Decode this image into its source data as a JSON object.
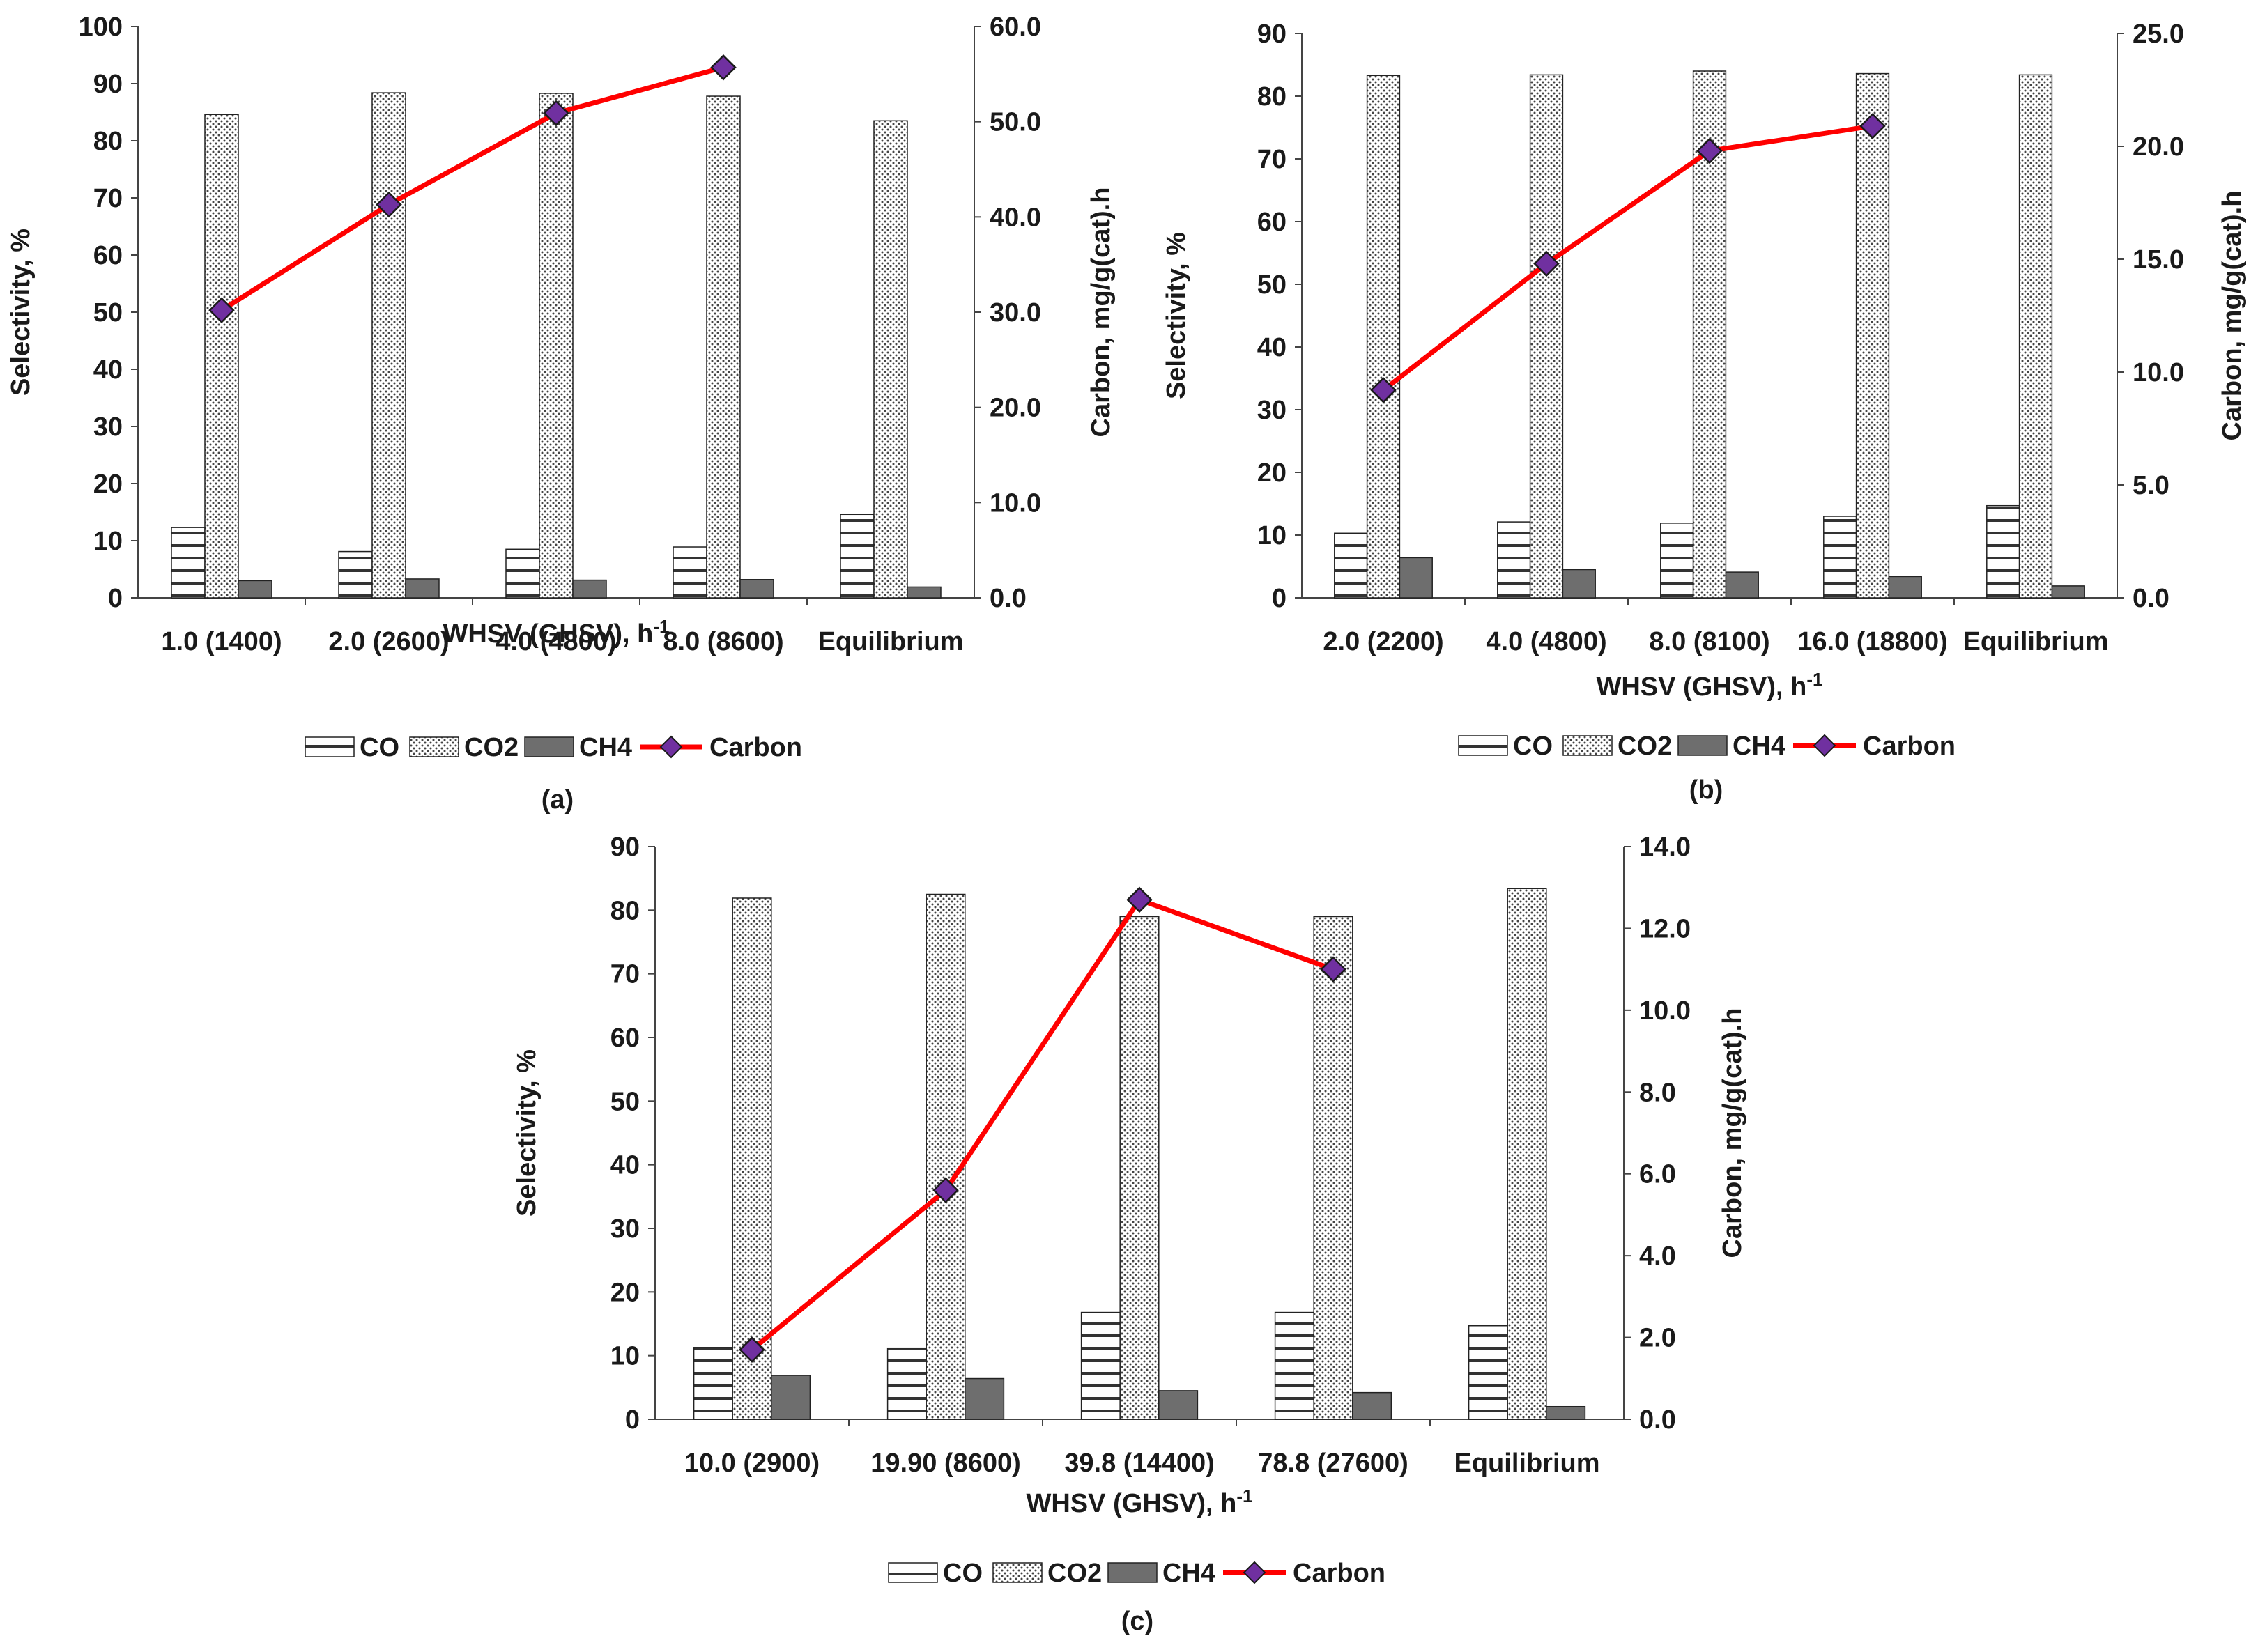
{
  "panel_labels": [
    "(a)",
    "(b)",
    "(c)"
  ],
  "legend": {
    "CO": "CO",
    "CO2": "CO2",
    "CH4": "CH4",
    "Carbon": "Carbon"
  },
  "colors": {
    "co_fill": "#ffffff",
    "co_hatch": "#333333",
    "co2_dots": "#444444",
    "ch4": "#6e6e6e",
    "carbon_line": "#ff0000",
    "carbon_marker": "#7030a0",
    "axis": "#444444"
  },
  "chart_data": [
    {
      "type": "bar",
      "panel": "(a)",
      "categories": [
        "1.0 (1400)",
        "2.0 (2600)",
        "4.0 (4800)",
        "8.0 (8600)",
        "Equilibrium"
      ],
      "series": [
        {
          "name": "CO",
          "values": [
            12.3,
            8.1,
            8.5,
            8.9,
            14.6
          ]
        },
        {
          "name": "CO2",
          "values": [
            84.6,
            88.4,
            88.3,
            87.8,
            83.5
          ]
        },
        {
          "name": "CH4",
          "values": [
            3.0,
            3.3,
            3.1,
            3.2,
            1.9
          ]
        },
        {
          "name": "Carbon",
          "axis": "right",
          "type": "line",
          "values": [
            30.2,
            41.3,
            50.9,
            55.7,
            null
          ]
        }
      ],
      "xlabel": "WHSV (GHSV), h",
      "xlabel_sup": "-1",
      "ylabel": "Selectivity, %",
      "y2label": "Carbon, mg/g(cat).h",
      "ylim": [
        0,
        100
      ],
      "y_ticks": [
        "0",
        "10",
        "20",
        "30",
        "40",
        "50",
        "60",
        "70",
        "80",
        "90",
        "100"
      ],
      "y2lim": [
        0,
        60
      ],
      "y2_ticks": [
        "0.0",
        "10.0",
        "20.0",
        "30.0",
        "40.0",
        "50.0",
        "60.0"
      ],
      "legend": "bottom"
    },
    {
      "type": "bar",
      "panel": "(b)",
      "categories": [
        "2.0 (2200)",
        "4.0 (4800)",
        "8.0 (8100)",
        "16.0 (18800)",
        "Equilibrium"
      ],
      "series": [
        {
          "name": "CO",
          "values": [
            10.3,
            12.1,
            11.9,
            13.0,
            14.7
          ]
        },
        {
          "name": "CO2",
          "values": [
            83.3,
            83.4,
            84.0,
            83.6,
            83.4
          ]
        },
        {
          "name": "CH4",
          "values": [
            6.4,
            4.5,
            4.1,
            3.4,
            1.9
          ]
        },
        {
          "name": "Carbon",
          "axis": "right",
          "type": "line",
          "values": [
            9.2,
            14.8,
            19.8,
            20.9,
            null
          ]
        }
      ],
      "xlabel": "WHSV (GHSV), h",
      "xlabel_sup": "-1",
      "ylabel": "Selectivity, %",
      "y2label": "Carbon, mg/g(cat).h",
      "ylim": [
        0,
        90
      ],
      "y_ticks": [
        "0",
        "10",
        "20",
        "30",
        "40",
        "50",
        "60",
        "70",
        "80",
        "90"
      ],
      "y2lim": [
        0,
        25
      ],
      "y2_ticks": [
        "0.0",
        "5.0",
        "10.0",
        "15.0",
        "20.0",
        "25.0"
      ],
      "legend": "bottom"
    },
    {
      "type": "bar",
      "panel": "(c)",
      "categories": [
        "10.0 (2900)",
        "19.90 (8600)",
        "39.8 (14400)",
        "78.8 (27600)",
        "Equilibrium"
      ],
      "series": [
        {
          "name": "CO",
          "values": [
            11.3,
            11.2,
            16.8,
            16.8,
            14.7
          ]
        },
        {
          "name": "CO2",
          "values": [
            81.9,
            82.5,
            79.0,
            79.0,
            83.4
          ]
        },
        {
          "name": "CH4",
          "values": [
            6.9,
            6.4,
            4.5,
            4.2,
            2.0
          ]
        },
        {
          "name": "Carbon",
          "axis": "right",
          "type": "line",
          "values": [
            1.7,
            5.6,
            12.7,
            11.0,
            null
          ]
        }
      ],
      "xlabel": "WHSV (GHSV), h",
      "xlabel_sup": "-1",
      "ylabel": "Selectivity, %",
      "y2label": "Carbon, mg/g(cat).h",
      "ylim": [
        0,
        90
      ],
      "y_ticks": [
        "0",
        "10",
        "20",
        "30",
        "40",
        "50",
        "60",
        "70",
        "80",
        "90"
      ],
      "y2lim": [
        0,
        14
      ],
      "y2_ticks": [
        "0.0",
        "2.0",
        "4.0",
        "6.0",
        "8.0",
        "10.0",
        "12.0",
        "14.0"
      ],
      "legend": "bottom"
    }
  ]
}
